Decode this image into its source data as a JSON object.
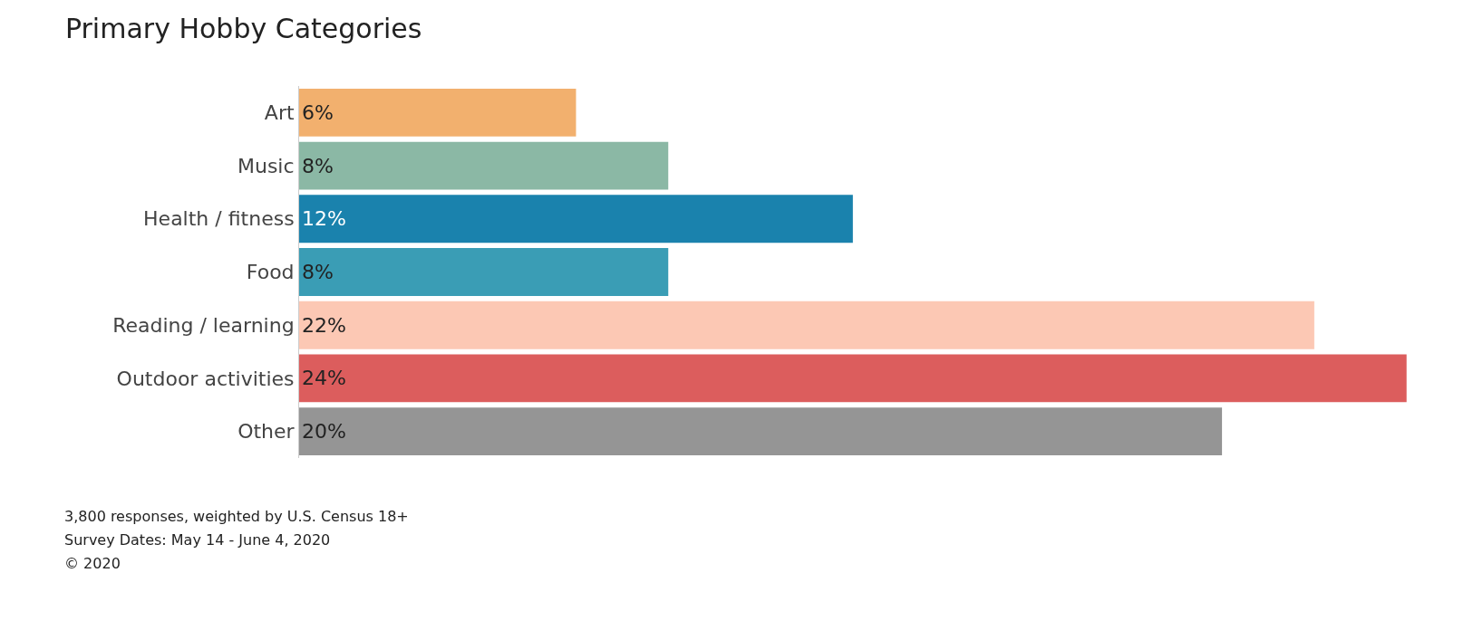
{
  "chart_data": {
    "type": "bar",
    "orientation": "horizontal",
    "title": "Primary Hobby Categories",
    "categories": [
      "Art",
      "Music",
      "Health / fitness",
      "Food",
      "Reading / learning",
      "Outdoor activities",
      "Other"
    ],
    "values": [
      6,
      8,
      12,
      8,
      22,
      24,
      20
    ],
    "colors": [
      "#f2b06e",
      "#8bb8a5",
      "#1a82ad",
      "#3a9db5",
      "#fcc8b4",
      "#dc5d5d",
      "#959595"
    ],
    "value_labels": [
      "6%",
      "8%",
      "12%",
      "8%",
      "22%",
      "24%",
      "20%"
    ],
    "tick_labels": "y",
    "annotations": [
      "3,800 responses, weighted by U.S. Census 18+",
      "Survey Dates: May 14 - June 4, 2020",
      "© 2020"
    ]
  }
}
